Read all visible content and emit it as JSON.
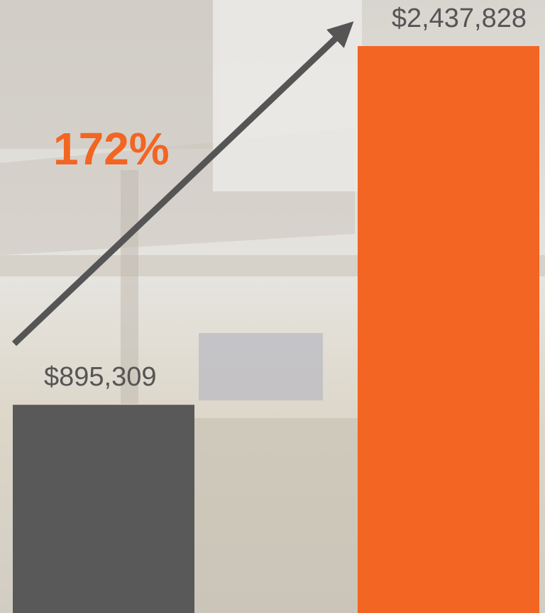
{
  "chart_data": {
    "type": "bar",
    "values": [
      895309,
      2437828
    ],
    "value_labels": [
      "$895,309",
      "$2,437,828"
    ],
    "colors": [
      "#595959",
      "#f26522"
    ],
    "annotation": "172%",
    "annotation_color": "#f26522"
  }
}
